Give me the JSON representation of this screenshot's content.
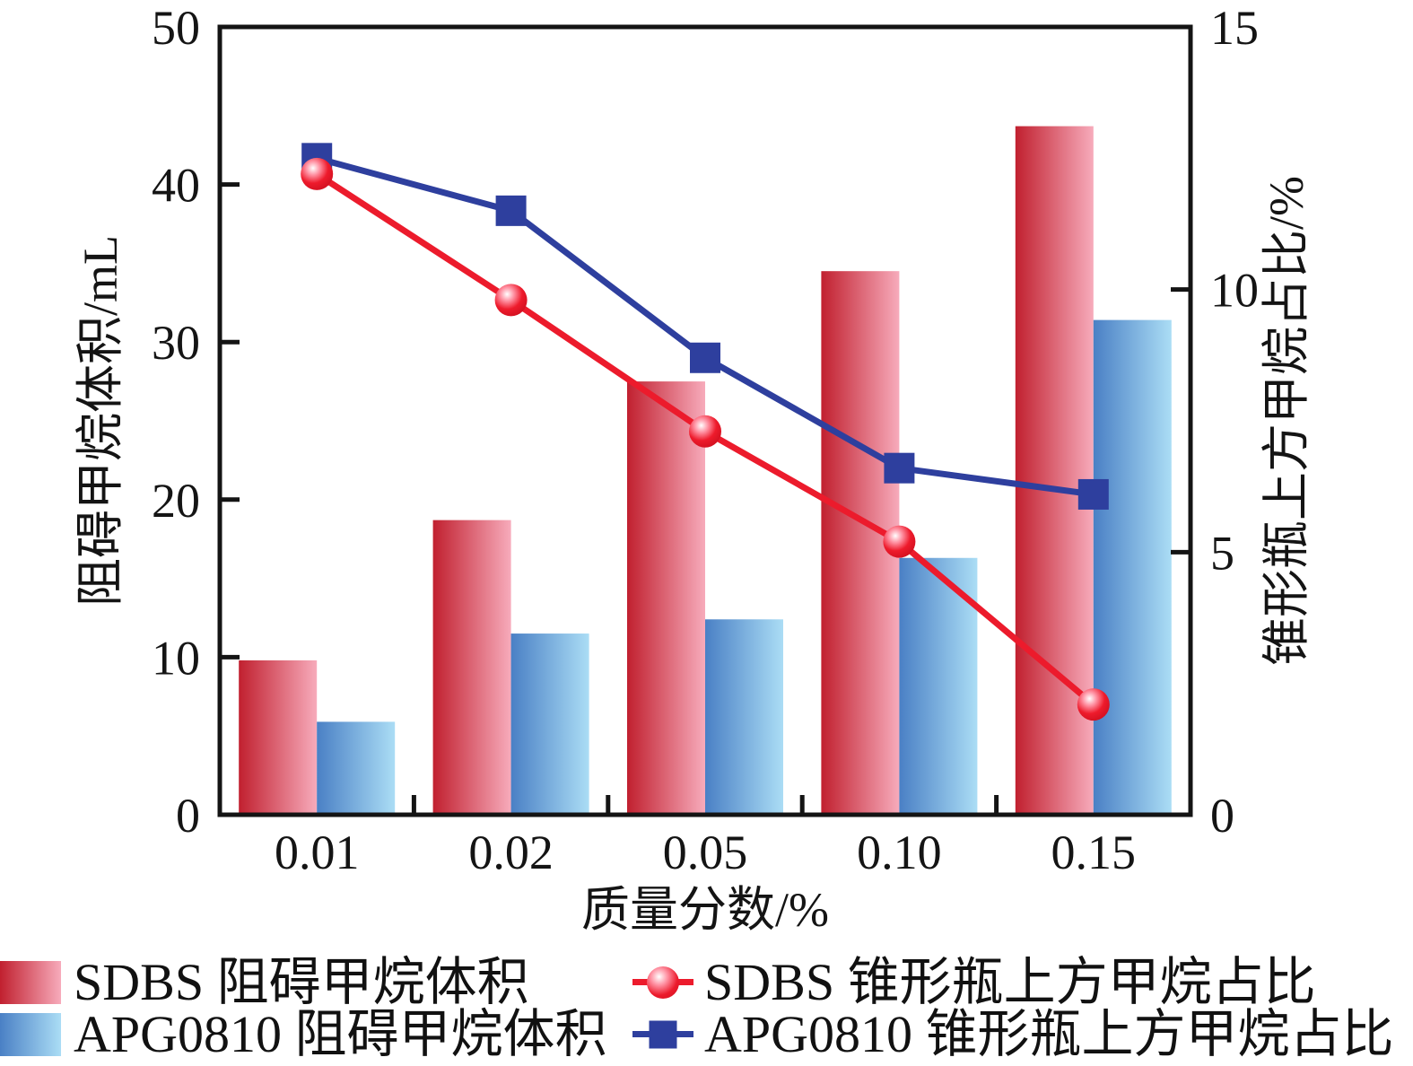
{
  "chart_data": {
    "type": "bar",
    "subtype": "grouped-bars-with-lines-dual-axis",
    "categories": [
      "0.01",
      "0.02",
      "0.05",
      "0.10",
      "0.15"
    ],
    "xlabel": "质量分数/%",
    "left_axis": {
      "label": "阻碍甲烷体积/mL",
      "range": [
        0,
        50
      ],
      "ticks": [
        0,
        10,
        20,
        30,
        40,
        50
      ]
    },
    "right_axis": {
      "label": "锥形瓶上方甲烷占比/%",
      "range": [
        0,
        15
      ],
      "ticks": [
        0,
        5,
        10,
        15
      ]
    },
    "grid": "off",
    "legend_position": "bottom",
    "bar_series": [
      {
        "name": "SDBS 阻碍甲烷体积",
        "axis": "left",
        "values": [
          9.8,
          18.7,
          27.5,
          34.5,
          43.7
        ],
        "gradient": [
          "#c1202f",
          "#f7abbb"
        ]
      },
      {
        "name": "APG0810 阻碍甲烷体积",
        "axis": "left",
        "values": [
          5.9,
          11.5,
          12.4,
          16.3,
          31.4
        ],
        "gradient": [
          "#4a80c5",
          "#abddf5"
        ]
      }
    ],
    "line_series": [
      {
        "name": "APG0810 锥形瓶上方甲烷占比",
        "axis": "right",
        "values": [
          12.5,
          11.5,
          8.7,
          6.6,
          6.1
        ],
        "color": "#2e3f9e",
        "marker": "square"
      },
      {
        "name": "SDBS 锥形瓶上方甲烷占比",
        "axis": "right",
        "values": [
          12.2,
          9.8,
          7.3,
          5.2,
          2.1
        ],
        "color": "#ec1b2c",
        "marker": "circle"
      }
    ],
    "axis_color": "#141414"
  }
}
